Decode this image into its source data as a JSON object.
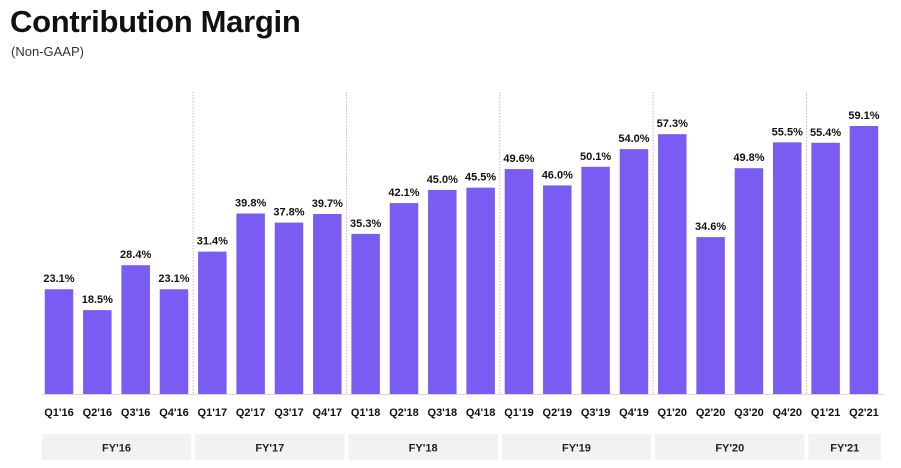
{
  "header": {
    "title": "Contribution Margin",
    "subtitle": "(Non-GAAP)"
  },
  "chart_data": {
    "type": "bar",
    "title": "Contribution Margin",
    "subtitle": "(Non-GAAP)",
    "categories": [
      "Q1'16",
      "Q2'16",
      "Q3'16",
      "Q4'16",
      "Q1'17",
      "Q2'17",
      "Q3'17",
      "Q4'17",
      "Q1'18",
      "Q2'18",
      "Q3'18",
      "Q4'18",
      "Q1'19",
      "Q2'19",
      "Q3'19",
      "Q4'19",
      "Q1'20",
      "Q2'20",
      "Q3'20",
      "Q4'20",
      "Q1'21",
      "Q2'21"
    ],
    "values": [
      23.1,
      18.5,
      28.4,
      23.1,
      31.4,
      39.8,
      37.8,
      39.7,
      35.3,
      42.1,
      45.0,
      45.5,
      49.6,
      46.0,
      50.1,
      54.0,
      57.3,
      34.6,
      49.8,
      55.5,
      55.4,
      59.1
    ],
    "data_labels": [
      "23.1%",
      "18.5%",
      "28.4%",
      "23.1%",
      "31.4%",
      "39.8%",
      "37.8%",
      "39.7%",
      "35.3%",
      "42.1%",
      "45.0%",
      "45.5%",
      "49.6%",
      "46.0%",
      "50.1%",
      "54.0%",
      "57.3%",
      "34.6%",
      "49.8%",
      "55.5%",
      "55.4%",
      "59.1%"
    ],
    "unit": "%",
    "ylim": [
      0,
      59.1
    ],
    "groups": [
      {
        "label": "FY'16",
        "count": 4
      },
      {
        "label": "FY'17",
        "count": 4
      },
      {
        "label": "FY'18",
        "count": 4
      },
      {
        "label": "FY'19",
        "count": 4
      },
      {
        "label": "FY'20",
        "count": 4
      },
      {
        "label": "FY'21",
        "count": 2
      }
    ],
    "bar_color": "#7b5cf2",
    "divider_color": "#bfbfbf",
    "group_box_color": "#f2f2f2",
    "grid": false,
    "legend": "none"
  }
}
